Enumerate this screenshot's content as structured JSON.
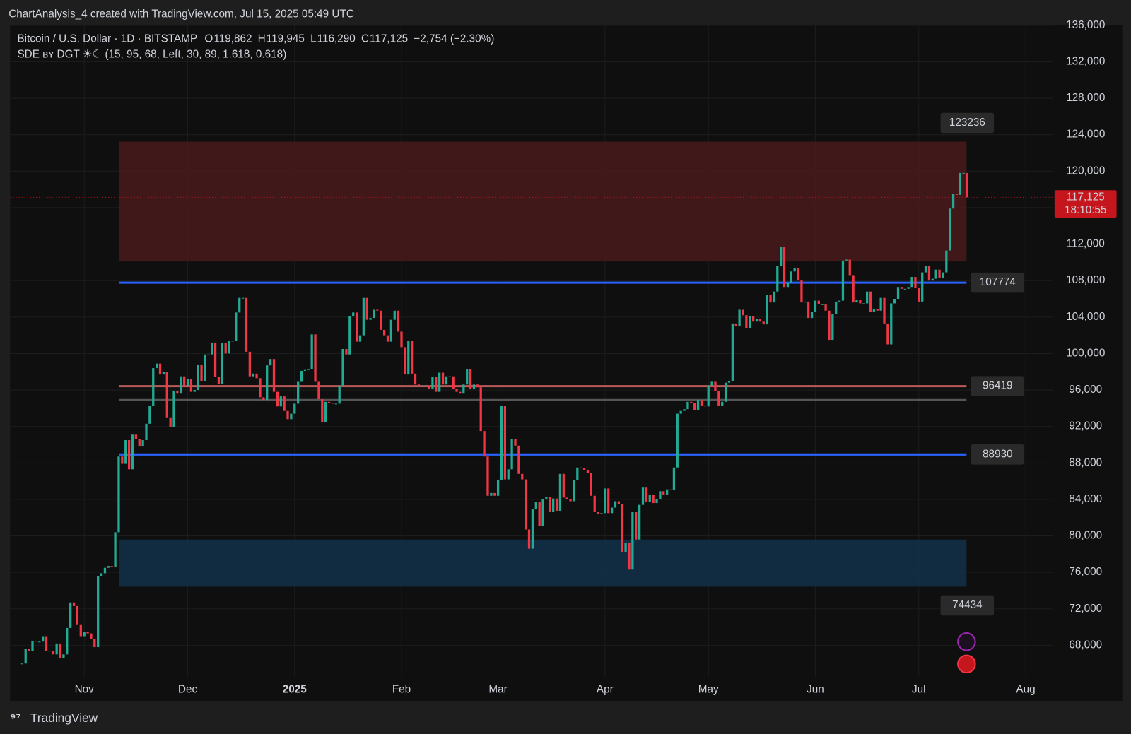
{
  "header": "ChartAnalysis_4 created with TradingView.com, Jul 15, 2025 05:49 UTC",
  "footer": "TradingView",
  "chart_data": {
    "type": "candlestick",
    "title": "Bitcoin / U.S. Dollar · 1D · BITSTAMP",
    "ohlc": [
      {
        "name": "O",
        "text": "119,862"
      },
      {
        "name": "H",
        "text": "119,945"
      },
      {
        "name": "L",
        "text": "116,290"
      },
      {
        "name": "C",
        "text": "117,125"
      }
    ],
    "change": "−2,754 (−2.30%)",
    "indicator": "SDE ʙʏ DGT ☀☾ (15, 95, 68, Left, 30, 89, 1.618, 0.618)",
    "up_color": "#22ab94",
    "down_color": "#f23645",
    "close": [
      66000,
      67600,
      67400,
      68500,
      68400,
      68400,
      69000,
      67400,
      67400,
      67000,
      68200,
      66600,
      67000,
      69900,
      72700,
      72300,
      70300,
      69000,
      69500,
      69300,
      68700,
      67800,
      75600,
      75900,
      76500,
      76700,
      76600,
      80400,
      88700,
      87900,
      90500,
      87300,
      91100,
      90600,
      89800,
      90500,
      92300,
      94300,
      98400,
      98900,
      97700,
      98000,
      93000,
      91900,
      95900,
      95600,
      97500,
      96400,
      97200,
      95800,
      96000,
      98800,
      97000,
      99900,
      99900,
      101200,
      97400,
      96700,
      101200,
      100000,
      101400,
      101400,
      104500,
      106100,
      106100,
      100200,
      97500,
      97800,
      97300,
      95200,
      94900,
      98700,
      99400,
      95800,
      94200,
      95300,
      93700,
      92800,
      93400,
      94500,
      96900,
      98100,
      98200,
      98300,
      102100,
      96900,
      95000,
      92500,
      94700,
      94600,
      94500,
      94500,
      96500,
      100500,
      99900,
      104100,
      104500,
      101300,
      102000,
      106100,
      103700,
      103900,
      104800,
      104700,
      102600,
      102000,
      101300,
      103700,
      104700,
      102400,
      100700,
      97700,
      101400,
      97800,
      96600,
      96500,
      96500,
      96500,
      96100,
      97400,
      95800,
      97900,
      96600,
      97500,
      97500,
      96100,
      95800,
      95600,
      96600,
      98300,
      96100,
      96600,
      96300,
      91500,
      88700,
      84400,
      84700,
      84400,
      86100,
      94300,
      86200,
      87300,
      90600,
      89900,
      86800,
      86200,
      80700,
      78600,
      82900,
      83700,
      81100,
      84000,
      84300,
      82600,
      84100,
      82700,
      86800,
      84200,
      84000,
      83800,
      86100,
      87500,
      87400,
      87200,
      86900,
      84400,
      82600,
      82400,
      82500,
      85200,
      82500,
      83100,
      83800,
      83500,
      78200,
      79200,
      76300,
      82600,
      79600,
      83400,
      85300,
      83700,
      84500,
      83600,
      84000,
      84900,
      84500,
      85100,
      85000,
      87500,
      93400,
      93700,
      93900,
      94700,
      94600,
      93800,
      94900,
      94300,
      94200,
      96500,
      96900,
      95900,
      94300,
      94700,
      96800,
      97000,
      103300,
      103000,
      104800,
      104200,
      102800,
      104100,
      103500,
      103800,
      103500,
      103200,
      106400,
      105600,
      106800,
      109600,
      111700,
      107300,
      107800,
      109000,
      109400,
      108000,
      105600,
      105700,
      103900,
      104600,
      105800,
      105400,
      105400,
      104700,
      101500,
      104300,
      105700,
      105800,
      110200,
      110300,
      108600,
      105600,
      105900,
      105500,
      105500,
      106800,
      104600,
      104900,
      104700,
      106100,
      103300,
      101000,
      105500,
      106000,
      107300,
      107100,
      107100,
      107300,
      108400,
      107200,
      105700,
      108900,
      109600,
      108000,
      108200,
      109200,
      108300,
      108900,
      111300,
      115900,
      117500,
      117400,
      119800,
      119800,
      117125
    ],
    "xlim": [
      -3.5,
      297.9
    ],
    "xticks": [
      {
        "value": 18,
        "label": "Nov"
      },
      {
        "value": 48,
        "label": "Dec"
      },
      {
        "value": 79,
        "label": "2025"
      },
      {
        "value": 110,
        "label": "Feb"
      },
      {
        "value": 138,
        "label": "Mar"
      },
      {
        "value": 169,
        "label": "Apr"
      },
      {
        "value": 199,
        "label": "May"
      },
      {
        "value": 230,
        "label": "Jun"
      },
      {
        "value": 260,
        "label": "Jul"
      },
      {
        "value": 291,
        "label": "Aug"
      }
    ],
    "ylim": [
      64500,
      136000
    ],
    "yticks": [
      {
        "value": 68000,
        "label": "68,000"
      },
      {
        "value": 72000,
        "label": "72,000"
      },
      {
        "value": 76000,
        "label": "76,000"
      },
      {
        "value": 80000,
        "label": "80,000"
      },
      {
        "value": 84000,
        "label": "84,000"
      },
      {
        "value": 88000,
        "label": "88,000"
      },
      {
        "value": 92000,
        "label": "92,000"
      },
      {
        "value": 96000,
        "label": "96,000"
      },
      {
        "value": 100000,
        "label": "100,000"
      },
      {
        "value": 104000,
        "label": "104,000"
      },
      {
        "value": 108000,
        "label": "108,000"
      },
      {
        "value": 112000,
        "label": "112,000"
      },
      {
        "value": 116000,
        "label": "116,000"
      },
      {
        "value": 120000,
        "label": "120,000"
      },
      {
        "value": 124000,
        "label": "124,000"
      },
      {
        "value": 128000,
        "label": "128,000"
      },
      {
        "value": 132000,
        "label": "132,000"
      },
      {
        "value": 136000,
        "label": "136,000"
      }
    ],
    "grid": true,
    "zones": [
      {
        "top": 123236,
        "bottom": 110100,
        "color": "#4a1a1c",
        "label_edge": "top"
      },
      {
        "top": 79600,
        "bottom": 74434,
        "color": "#12304a",
        "label_edge": "bottom"
      }
    ],
    "levels": [
      {
        "value": 107774,
        "color": "#2962ff",
        "show_label": true
      },
      {
        "value": 96419,
        "color": "#b85a5a",
        "show_label": true
      },
      {
        "value": 94900,
        "color": "#555555",
        "show_label": false
      },
      {
        "value": 88930,
        "color": "#2962ff",
        "show_label": true
      }
    ],
    "last": {
      "value": 117125,
      "label": "117,125",
      "countdown": "18:10:55",
      "color": "#c4161c"
    }
  }
}
